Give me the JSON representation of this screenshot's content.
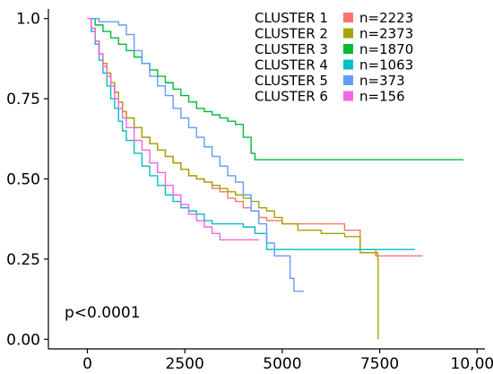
{
  "chart_data": {
    "type": "line",
    "title": "",
    "xlabel": "",
    "ylabel": "",
    "xlim": [
      -1000,
      10200
    ],
    "ylim": [
      -0.03,
      1.03
    ],
    "x_ticks": [
      0,
      2500,
      5000,
      7500,
      10000
    ],
    "x_tick_labels": [
      "0",
      "2500",
      "5000",
      "7500",
      "10,000"
    ],
    "y_ticks": [
      0,
      0.25,
      0.5,
      0.75,
      1.0
    ],
    "y_tick_labels": [
      "0.00",
      "0.25",
      "0.50",
      "0.75",
      "1.0"
    ],
    "grid": false,
    "legend_position": "top-right",
    "annotation": "p<0.0001",
    "series": [
      {
        "name": "CLUSTER 1",
        "n_label": "n=2223",
        "color": "#F8766D",
        "points": [
          [
            0,
            1.0
          ],
          [
            100,
            0.97
          ],
          [
            200,
            0.93
          ],
          [
            300,
            0.89
          ],
          [
            400,
            0.86
          ],
          [
            500,
            0.83
          ],
          [
            600,
            0.8
          ],
          [
            700,
            0.77
          ],
          [
            800,
            0.74
          ],
          [
            900,
            0.71
          ],
          [
            1000,
            0.69
          ],
          [
            1200,
            0.66
          ],
          [
            1400,
            0.63
          ],
          [
            1600,
            0.61
          ],
          [
            1800,
            0.59
          ],
          [
            2000,
            0.57
          ],
          [
            2200,
            0.55
          ],
          [
            2400,
            0.53
          ],
          [
            2600,
            0.51
          ],
          [
            2800,
            0.5
          ],
          [
            3000,
            0.49
          ],
          [
            3200,
            0.47
          ],
          [
            3400,
            0.46
          ],
          [
            3600,
            0.44
          ],
          [
            3800,
            0.43
          ],
          [
            4000,
            0.41
          ],
          [
            4200,
            0.4
          ],
          [
            4400,
            0.38
          ],
          [
            4600,
            0.37
          ],
          [
            5000,
            0.36
          ],
          [
            5500,
            0.36
          ],
          [
            6000,
            0.36
          ],
          [
            6300,
            0.36
          ],
          [
            6600,
            0.34
          ],
          [
            7000,
            0.28
          ],
          [
            7400,
            0.26
          ],
          [
            8000,
            0.26
          ],
          [
            8600,
            0.26
          ]
        ]
      },
      {
        "name": "CLUSTER 2",
        "n_label": "n=2373",
        "color": "#A3A500",
        "points": [
          [
            0,
            1.0
          ],
          [
            100,
            0.97
          ],
          [
            200,
            0.93
          ],
          [
            300,
            0.89
          ],
          [
            400,
            0.86
          ],
          [
            500,
            0.83
          ],
          [
            600,
            0.8
          ],
          [
            700,
            0.77
          ],
          [
            800,
            0.74
          ],
          [
            900,
            0.71
          ],
          [
            1000,
            0.69
          ],
          [
            1200,
            0.66
          ],
          [
            1400,
            0.63
          ],
          [
            1600,
            0.61
          ],
          [
            1800,
            0.59
          ],
          [
            2000,
            0.57
          ],
          [
            2200,
            0.55
          ],
          [
            2400,
            0.53
          ],
          [
            2600,
            0.51
          ],
          [
            2800,
            0.5
          ],
          [
            3000,
            0.49
          ],
          [
            3200,
            0.48
          ],
          [
            3400,
            0.47
          ],
          [
            3600,
            0.46
          ],
          [
            3800,
            0.45
          ],
          [
            4000,
            0.44
          ],
          [
            4200,
            0.43
          ],
          [
            4400,
            0.41
          ],
          [
            4600,
            0.4
          ],
          [
            4800,
            0.38
          ],
          [
            5000,
            0.36
          ],
          [
            5400,
            0.34
          ],
          [
            6000,
            0.33
          ],
          [
            6600,
            0.32
          ],
          [
            7000,
            0.27
          ],
          [
            7300,
            0.27
          ],
          [
            7450,
            0.25
          ],
          [
            7460,
            0.0
          ]
        ]
      },
      {
        "name": "CLUSTER 3",
        "n_label": "n=1870",
        "color": "#00BA38",
        "points": [
          [
            0,
            1.0
          ],
          [
            200,
            0.98
          ],
          [
            400,
            0.96
          ],
          [
            600,
            0.94
          ],
          [
            800,
            0.92
          ],
          [
            1000,
            0.9
          ],
          [
            1200,
            0.88
          ],
          [
            1400,
            0.86
          ],
          [
            1600,
            0.84
          ],
          [
            1800,
            0.82
          ],
          [
            2000,
            0.8
          ],
          [
            2200,
            0.78
          ],
          [
            2400,
            0.76
          ],
          [
            2600,
            0.74
          ],
          [
            2800,
            0.72
          ],
          [
            3000,
            0.71
          ],
          [
            3200,
            0.7
          ],
          [
            3400,
            0.69
          ],
          [
            3600,
            0.68
          ],
          [
            3800,
            0.67
          ],
          [
            4000,
            0.63
          ],
          [
            4200,
            0.58
          ],
          [
            4300,
            0.56
          ],
          [
            5000,
            0.56
          ],
          [
            6000,
            0.56
          ],
          [
            7000,
            0.56
          ],
          [
            8000,
            0.56
          ],
          [
            9000,
            0.56
          ],
          [
            9650,
            0.56
          ]
        ]
      },
      {
        "name": "CLUSTER 4",
        "n_label": "n=1063",
        "color": "#00BFC4",
        "points": [
          [
            0,
            1.0
          ],
          [
            100,
            0.96
          ],
          [
            200,
            0.92
          ],
          [
            300,
            0.87
          ],
          [
            400,
            0.83
          ],
          [
            500,
            0.79
          ],
          [
            600,
            0.75
          ],
          [
            700,
            0.72
          ],
          [
            800,
            0.68
          ],
          [
            900,
            0.65
          ],
          [
            1000,
            0.62
          ],
          [
            1200,
            0.58
          ],
          [
            1400,
            0.54
          ],
          [
            1600,
            0.51
          ],
          [
            1800,
            0.48
          ],
          [
            2000,
            0.45
          ],
          [
            2200,
            0.43
          ],
          [
            2400,
            0.41
          ],
          [
            2600,
            0.4
          ],
          [
            2800,
            0.39
          ],
          [
            3000,
            0.37
          ],
          [
            3200,
            0.36
          ],
          [
            3600,
            0.36
          ],
          [
            4000,
            0.35
          ],
          [
            4300,
            0.33
          ],
          [
            4600,
            0.28
          ],
          [
            5000,
            0.28
          ],
          [
            6000,
            0.28
          ],
          [
            7000,
            0.28
          ],
          [
            8000,
            0.28
          ],
          [
            8400,
            0.28
          ]
        ]
      },
      {
        "name": "CLUSTER 5",
        "n_label": "n=373",
        "color": "#619CFF",
        "points": [
          [
            0,
            1.0
          ],
          [
            300,
            0.99
          ],
          [
            800,
            0.98
          ],
          [
            1000,
            0.95
          ],
          [
            1200,
            0.9
          ],
          [
            1400,
            0.86
          ],
          [
            1600,
            0.82
          ],
          [
            1800,
            0.79
          ],
          [
            2000,
            0.76
          ],
          [
            2200,
            0.72
          ],
          [
            2400,
            0.69
          ],
          [
            2600,
            0.66
          ],
          [
            2800,
            0.63
          ],
          [
            3000,
            0.6
          ],
          [
            3200,
            0.57
          ],
          [
            3400,
            0.54
          ],
          [
            3600,
            0.51
          ],
          [
            3800,
            0.49
          ],
          [
            4000,
            0.45
          ],
          [
            4200,
            0.4
          ],
          [
            4400,
            0.36
          ],
          [
            4600,
            0.3
          ],
          [
            4800,
            0.26
          ],
          [
            5200,
            0.19
          ],
          [
            5300,
            0.15
          ],
          [
            5550,
            0.15
          ]
        ]
      },
      {
        "name": "CLUSTER 6",
        "n_label": "n=156",
        "color": "#F564E3",
        "points": [
          [
            0,
            1.0
          ],
          [
            100,
            0.97
          ],
          [
            200,
            0.93
          ],
          [
            300,
            0.89
          ],
          [
            400,
            0.85
          ],
          [
            500,
            0.82
          ],
          [
            600,
            0.79
          ],
          [
            700,
            0.75
          ],
          [
            800,
            0.72
          ],
          [
            900,
            0.69
          ],
          [
            1000,
            0.66
          ],
          [
            1200,
            0.62
          ],
          [
            1400,
            0.59
          ],
          [
            1600,
            0.55
          ],
          [
            1800,
            0.52
          ],
          [
            2000,
            0.48
          ],
          [
            2200,
            0.45
          ],
          [
            2400,
            0.42
          ],
          [
            2600,
            0.39
          ],
          [
            2800,
            0.37
          ],
          [
            3000,
            0.35
          ],
          [
            3200,
            0.33
          ],
          [
            3400,
            0.31
          ],
          [
            3800,
            0.31
          ],
          [
            4200,
            0.31
          ],
          [
            4400,
            0.31
          ]
        ]
      }
    ]
  }
}
